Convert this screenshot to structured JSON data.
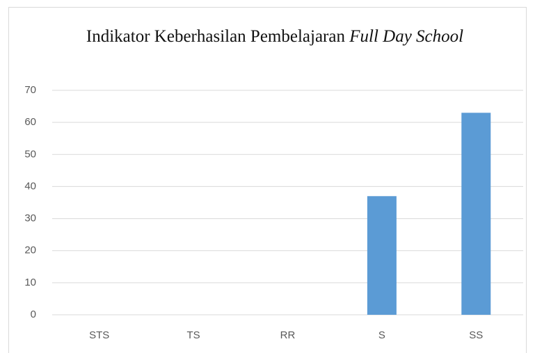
{
  "chart_data": {
    "type": "bar",
    "title": {
      "text": "Indikator Keberhasilan Pembelajaran",
      "italic": "Full Day School"
    },
    "categories": [
      "STS",
      "TS",
      "RR",
      "S",
      "SS"
    ],
    "values": [
      0,
      0,
      0,
      37,
      63
    ],
    "color": "#5b9bd5",
    "ylim": [
      0,
      70
    ],
    "yticks": [
      0,
      10,
      20,
      30,
      40,
      50,
      60,
      70
    ],
    "grid": true
  }
}
